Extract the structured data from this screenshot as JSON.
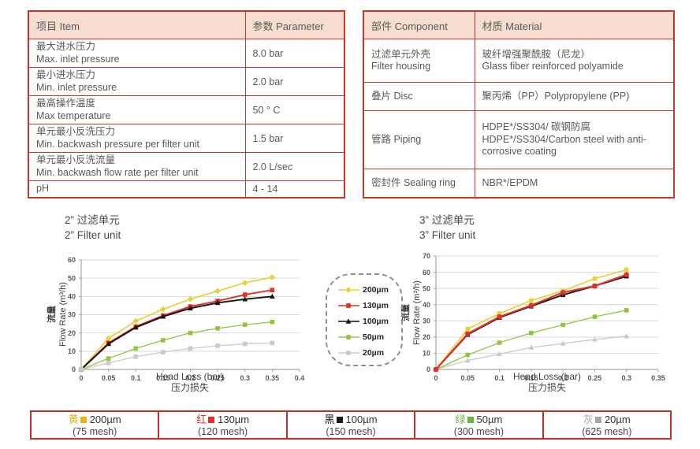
{
  "tables": {
    "parameters": {
      "headers": [
        "项目 Item",
        "参数 Parameter"
      ],
      "rows": [
        {
          "zh": "最大进水压力",
          "en": "Max. inlet pressure",
          "value": "8.0 bar"
        },
        {
          "zh": "最小进水压力",
          "en": "Min. inlet pressure",
          "value": "2.0 bar"
        },
        {
          "zh": "最高操作温度",
          "en": "Max temperature",
          "value": "50 ° C"
        },
        {
          "zh": "单元最小反洗压力",
          "en": "Min. backwash pressure per filter unit",
          "value": "1.5 bar"
        },
        {
          "zh": "单元最小反洗流量",
          "en": "Min. backwash flow rate per filter unit",
          "value": "2.0 L/sec"
        },
        {
          "zh": "pH",
          "en": "",
          "value": "4 - 14"
        }
      ]
    },
    "materials": {
      "headers": [
        "部件 Component",
        "材质 Material"
      ],
      "rows": [
        {
          "zh": "过滤单元外壳",
          "en": "Filter housing",
          "mat_zh": "玻纤增强聚酰胺（尼龙）",
          "mat_en": "Glass fiber reinforced polyamide"
        },
        {
          "zh": "叠片 Disc",
          "en": "",
          "mat_zh": "聚丙烯（PP）Polypropylene (PP)",
          "mat_en": ""
        },
        {
          "zh": "管路 Piping",
          "en": "",
          "mat_zh": "HDPE*/SS304/ 碳钢防腐",
          "mat_en": "HDPE*/SS304/Carbon steel with anti-corrosive coating"
        },
        {
          "zh": "密封件 Sealing ring",
          "en": "",
          "mat_zh": "NBR*/EPDM",
          "mat_en": ""
        }
      ]
    }
  },
  "chart_data": [
    {
      "type": "line",
      "title_zh": "2” 过滤单元",
      "title_en": "2” Filter unit",
      "xlabel_en": "Head Loss (bar)",
      "xlabel_zh": "压力损失",
      "ylabel_zh": "流量",
      "ylabel_en": "Flow Rate (m³/h)",
      "x": [
        0,
        0.05,
        0.1,
        0.15,
        0.2,
        0.25,
        0.3,
        0.35
      ],
      "xlim": [
        0,
        0.4
      ],
      "ylim": [
        0,
        60
      ],
      "xticks": [
        0,
        0.05,
        0.1,
        0.15,
        0.2,
        0.25,
        0.3,
        0.35,
        0.4
      ],
      "xtick_labels": [
        "0",
        "0.05",
        "0.1",
        "0.15",
        "0.2",
        "0.25",
        "0.3",
        "0.35",
        "0.4"
      ],
      "yticks": [
        0,
        10,
        20,
        30,
        40,
        50,
        60
      ],
      "grid": "horizontal",
      "legend_position": "outside-right",
      "series": [
        {
          "name": "200µm",
          "color": "#e5d33a",
          "marker": "diamond",
          "width": 1.7,
          "values": [
            0,
            17,
            26.5,
            33,
            38.5,
            43,
            47.5,
            50.5
          ]
        },
        {
          "name": "130µm",
          "color": "#e03127",
          "marker": "square",
          "width": 1.9,
          "values": [
            0,
            14.5,
            23.5,
            29.5,
            34.5,
            37.5,
            41,
            43.5
          ]
        },
        {
          "name": "100µm",
          "color": "#141414",
          "marker": "triangle",
          "width": 1.9,
          "values": [
            0,
            14,
            23,
            29,
            33.5,
            36.5,
            38.5,
            40
          ]
        },
        {
          "name": "50µm",
          "color": "#8fc63e",
          "marker": "square",
          "width": 1.3,
          "values": [
            0,
            6,
            11.5,
            16,
            20,
            22.5,
            24.5,
            26
          ]
        },
        {
          "name": "20µm",
          "color": "#c9c9c9",
          "marker": "square",
          "width": 1.3,
          "values": [
            0,
            3.5,
            7,
            9.5,
            11.5,
            13,
            14,
            14.5
          ]
        }
      ],
      "draw_order": [
        0,
        1,
        2,
        3,
        4
      ]
    },
    {
      "type": "line",
      "title_zh": "3” 过滤单元",
      "title_en": "3” Filter unit",
      "xlabel_en": "Head Loss (bar)",
      "xlabel_zh": "压力损失",
      "ylabel_zh": "流量",
      "ylabel_en": "Flow Rate (m³/h)",
      "x": [
        0,
        0.05,
        0.1,
        0.15,
        0.2,
        0.25,
        0.3
      ],
      "xlim": [
        0,
        0.35
      ],
      "ylim": [
        0,
        70
      ],
      "xticks": [
        0,
        0.05,
        0.1,
        0.15,
        0.2,
        0.25,
        0.3,
        0.35
      ],
      "xtick_labels": [
        "0",
        "0.05",
        "0.1",
        "0.15",
        "0.2",
        "0.25",
        "0.3",
        "0.35"
      ],
      "yticks": [
        0,
        10,
        20,
        30,
        40,
        50,
        60,
        70
      ],
      "grid": "horizontal",
      "legend_position": "none",
      "series": [
        {
          "name": "200µm",
          "color": "#e5d33a",
          "marker": "square",
          "width": 1.7,
          "values": [
            0,
            25,
            34.5,
            42.5,
            48.5,
            56,
            61.5
          ]
        },
        {
          "name": "130µm",
          "color": "#e03127",
          "marker": "circle",
          "width": 2.2,
          "values": [
            0,
            22,
            32.5,
            39.5,
            47.5,
            51.5,
            58.5
          ]
        },
        {
          "name": "100µm",
          "color": "#141414",
          "marker": "square",
          "width": 1.9,
          "values": [
            0,
            21.5,
            32,
            39,
            46,
            51.5,
            57.5
          ]
        },
        {
          "name": "50µm",
          "color": "#8fc63e",
          "marker": "square",
          "width": 1.3,
          "values": [
            0,
            9,
            16.5,
            22.5,
            27.5,
            32.5,
            36.5
          ]
        },
        {
          "name": "20µm",
          "color": "#c9c9c9",
          "marker": "triangle",
          "width": 1.3,
          "values": [
            0,
            5.5,
            9.5,
            13.5,
            16,
            18.5,
            20.5
          ]
        }
      ],
      "draw_order": [
        0,
        2,
        3,
        4,
        1
      ]
    }
  ],
  "legend": {
    "items": [
      {
        "label": "200µm",
        "color": "#e5d33a",
        "marker": "diamond"
      },
      {
        "label": "130µm",
        "color": "#e03127",
        "marker": "square"
      },
      {
        "label": "100µm",
        "color": "#141414",
        "marker": "triangle"
      },
      {
        "label": "50µm",
        "color": "#8fc63e",
        "marker": "square"
      },
      {
        "label": "20µm",
        "color": "#c9c9c9",
        "marker": "square"
      }
    ]
  },
  "bottom_legend": {
    "items": [
      {
        "char": "黄",
        "color": "#e9b417",
        "size": "200µm",
        "mesh": "(75 mesh)"
      },
      {
        "char": "红",
        "color": "#e03127",
        "size": "130µm",
        "mesh": "(120 mesh)"
      },
      {
        "char": "黑",
        "color": "#1a1a1a",
        "size": "100µm",
        "mesh": "(150 mesh)"
      },
      {
        "char": "绿",
        "color": "#6fb43f",
        "size": "50µm",
        "mesh": "(300 mesh)"
      },
      {
        "char": "灰",
        "color": "#a6a6a6",
        "size": "20µm",
        "mesh": "(625 mesh)"
      }
    ]
  },
  "colors": {
    "table_border": "#c0392b",
    "table_header_bg": "#f7ddd1",
    "grid_line": "#d9d9d9",
    "axis_line": "#a6a6a6",
    "text": "#595959"
  }
}
